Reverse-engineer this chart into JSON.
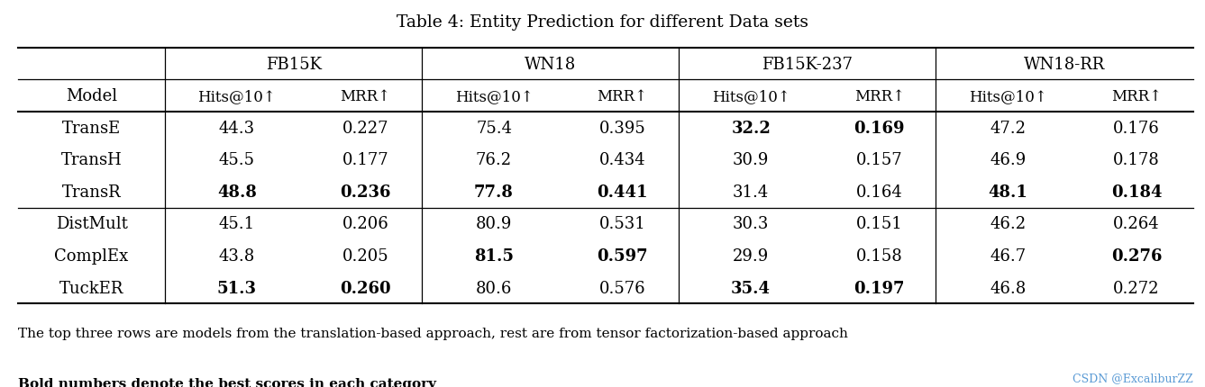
{
  "title": "Table 4: Entity Prediction for different Data sets",
  "datasets": [
    "FB15K",
    "WN18",
    "FB15K-237",
    "WN18-RR"
  ],
  "col_headers": [
    "Hits@10↑",
    "MRR↑",
    "Hits@10↑",
    "MRR↑",
    "Hits@10↑",
    "MRR↑",
    "Hits@10↑",
    "MRR↑"
  ],
  "row_header": "Model",
  "models": [
    "TransE",
    "TransH",
    "TransR",
    "DistMult",
    "ComplEx",
    "TuckER"
  ],
  "data": [
    [
      "44.3",
      "0.227",
      "75.4",
      "0.395",
      "32.2",
      "0.169",
      "47.2",
      "0.176"
    ],
    [
      "45.5",
      "0.177",
      "76.2",
      "0.434",
      "30.9",
      "0.157",
      "46.9",
      "0.178"
    ],
    [
      "48.8",
      "0.236",
      "77.8",
      "0.441",
      "31.4",
      "0.164",
      "48.1",
      "0.184"
    ],
    [
      "45.1",
      "0.206",
      "80.9",
      "0.531",
      "30.3",
      "0.151",
      "46.2",
      "0.264"
    ],
    [
      "43.8",
      "0.205",
      "81.5",
      "0.597",
      "29.9",
      "0.158",
      "46.7",
      "0.276"
    ],
    [
      "51.3",
      "0.260",
      "80.6",
      "0.576",
      "35.4",
      "0.197",
      "46.8",
      "0.272"
    ]
  ],
  "bold": [
    [
      false,
      false,
      false,
      false,
      true,
      true,
      false,
      false
    ],
    [
      false,
      false,
      false,
      false,
      false,
      false,
      false,
      false
    ],
    [
      true,
      true,
      true,
      true,
      false,
      false,
      true,
      true
    ],
    [
      false,
      false,
      false,
      false,
      false,
      false,
      false,
      false
    ],
    [
      false,
      false,
      true,
      true,
      false,
      false,
      false,
      true
    ],
    [
      true,
      true,
      false,
      false,
      true,
      true,
      false,
      false
    ]
  ],
  "footnote1": "The top three rows are models from the translation-based approach, rest are from tensor factorization-based approach",
  "footnote2": "Bold numbers denote the best scores in each category",
  "watermark": "CSDN @ExcaliburZZ",
  "bg_color": "#ffffff",
  "title_fontsize": 13.5,
  "header_fontsize": 13,
  "cell_fontsize": 13,
  "footnote_fontsize": 11,
  "watermark_fontsize": 9
}
